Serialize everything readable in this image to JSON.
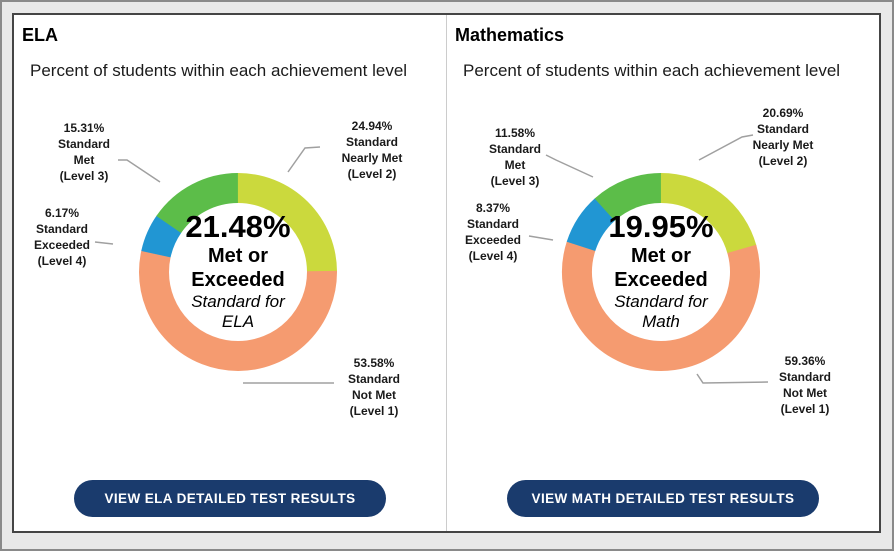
{
  "panels": [
    {
      "title": "ELA",
      "subtitle": "Percent of students within each achievement level",
      "center_value": "21.48%",
      "center_label": "Met or\nExceeded",
      "center_sublabel": "Standard for\nELA",
      "button_label": "VIEW ELA DETAILED TEST RESULTS",
      "callouts": {
        "met": "15.31%\nStandard\nMet\n(Level 3)",
        "nearly_met": "24.94%\nStandard\nNearly Met\n(Level 2)",
        "exceeded": "6.17%\nStandard\nExceeded\n(Level 4)",
        "not_met": "53.58%\nStandard\nNot Met\n(Level 1)"
      }
    },
    {
      "title": "Mathematics",
      "subtitle": "Percent of students within each achievement level",
      "center_value": "19.95%",
      "center_label": "Met or\nExceeded",
      "center_sublabel": "Standard for\nMath",
      "button_label": "VIEW MATH DETAILED TEST RESULTS",
      "callouts": {
        "met": "11.58%\nStandard\nMet\n(Level 3)",
        "nearly_met": "20.69%\nStandard\nNearly Met\n(Level 2)",
        "exceeded": "8.37%\nStandard\nExceeded\n(Level 4)",
        "not_met": "59.36%\nStandard\nNot Met\n(Level 1)"
      }
    }
  ],
  "chart_data": [
    {
      "type": "pie",
      "variant": "donut",
      "subject": "ELA",
      "title": "ELA",
      "subtitle": "Percent of students within each achievement level",
      "center": {
        "value": "21.48%",
        "label": "Met or Exceeded",
        "sublabel": "Standard for ELA"
      },
      "slices": [
        {
          "key": "nearly_met",
          "label": "Standard Nearly Met (Level 2)",
          "value": 24.94,
          "color": "#cbd93d"
        },
        {
          "key": "not_met",
          "label": "Standard Not Met (Level 1)",
          "value": 53.58,
          "color": "#f59b70"
        },
        {
          "key": "exceeded",
          "label": "Standard Exceeded (Level 4)",
          "value": 6.17,
          "color": "#2196d3"
        },
        {
          "key": "met",
          "label": "Standard Met (Level 3)",
          "value": 15.31,
          "color": "#5cbd49"
        }
      ],
      "start_angle_deg": 0,
      "direction": "clockwise",
      "legend": "none"
    },
    {
      "type": "pie",
      "variant": "donut",
      "subject": "Mathematics",
      "title": "Mathematics",
      "subtitle": "Percent of students within each achievement level",
      "center": {
        "value": "19.95%",
        "label": "Met or Exceeded",
        "sublabel": "Standard for Math"
      },
      "slices": [
        {
          "key": "nearly_met",
          "label": "Standard Nearly Met (Level 2)",
          "value": 20.69,
          "color": "#cbd93d"
        },
        {
          "key": "not_met",
          "label": "Standard Not Met (Level 1)",
          "value": 59.36,
          "color": "#f59b70"
        },
        {
          "key": "exceeded",
          "label": "Standard Exceeded (Level 4)",
          "value": 8.37,
          "color": "#2196d3"
        },
        {
          "key": "met",
          "label": "Standard Met (Level 3)",
          "value": 11.58,
          "color": "#5cbd49"
        }
      ],
      "start_angle_deg": 0,
      "direction": "clockwise",
      "legend": "none"
    }
  ],
  "colors": {
    "exceeded": "#2196d3",
    "met": "#5cbd49",
    "nearly_met": "#cbd93d",
    "not_met": "#f59b70",
    "button": "#1a3b6d",
    "connector": "#a0a0a0"
  }
}
